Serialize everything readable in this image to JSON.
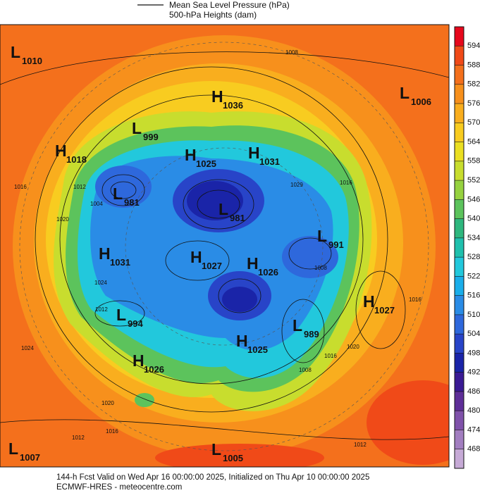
{
  "legend": {
    "items": [
      "Mean Sea Level Pressure (hPa)",
      "500-hPa Heights (dam)"
    ]
  },
  "colorbar": {
    "ticks": [
      594,
      588,
      582,
      576,
      570,
      564,
      558,
      552,
      546,
      540,
      534,
      528,
      522,
      516,
      510,
      504,
      498,
      492,
      486,
      480,
      474,
      468
    ],
    "colors": [
      "#e6081c",
      "#f04a18",
      "#f4701c",
      "#f7901c",
      "#f9ae1e",
      "#f8cc20",
      "#eadf22",
      "#c8dd2e",
      "#96d240",
      "#5cc35c",
      "#2eb77e",
      "#1fc0ad",
      "#22c8dc",
      "#1aaeea",
      "#2a8ce6",
      "#2e68dc",
      "#2844c8",
      "#1a24a8",
      "#3a1a94",
      "#5e2e98",
      "#8052aa",
      "#a27ec0",
      "#c6aad6"
    ]
  },
  "centers": [
    {
      "type": "L",
      "value": 1010
    },
    {
      "type": "H",
      "value": 1036
    },
    {
      "type": "L",
      "value": 1006
    },
    {
      "type": "L",
      "value": 999
    },
    {
      "type": "H",
      "value": 1018
    },
    {
      "type": "H",
      "value": 1025
    },
    {
      "type": "H",
      "value": 1031
    },
    {
      "type": "L",
      "value": 981
    },
    {
      "type": "L",
      "value": 981
    },
    {
      "type": "L",
      "value": 991
    },
    {
      "type": "H",
      "value": 1031
    },
    {
      "type": "H",
      "value": 1027
    },
    {
      "type": "H",
      "value": 1026
    },
    {
      "type": "H",
      "value": 1027
    },
    {
      "type": "L",
      "value": 994
    },
    {
      "type": "L",
      "value": 989
    },
    {
      "type": "H",
      "value": 1025
    },
    {
      "type": "H",
      "value": 1026
    },
    {
      "type": "L",
      "value": 1007
    },
    {
      "type": "L",
      "value": 1005
    }
  ],
  "contour_labels": [
    1008,
    1016,
    1012,
    1004,
    1020,
    1024,
    1012,
    1024,
    1020,
    1016,
    1012,
    1008,
    1016,
    1020,
    1029,
    1016,
    1008,
    1016,
    1012
  ],
  "footer": {
    "lines": [
      "144-h Fcst Valid on Wed Apr 16 00:00:00 2025, Initialized on Thu Apr 10 00:00:00 2025",
      "ECMWF-HRES  - meteocentre.com"
    ]
  }
}
